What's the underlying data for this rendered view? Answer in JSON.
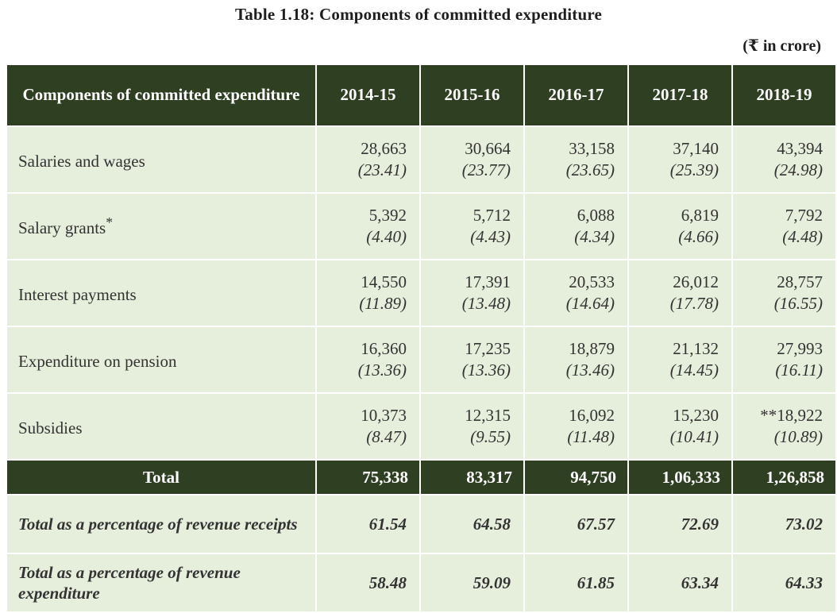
{
  "title": "Table 1.18: Components of committed expenditure",
  "unit": "(₹ in crore)",
  "columns": {
    "component": "Components of committed expenditure",
    "years": [
      "2014-15",
      "2015-16",
      "2016-17",
      "2017-18",
      "2018-19"
    ]
  },
  "rows": [
    {
      "label": "Salaries and wages",
      "sup": "",
      "values": [
        "28,663",
        "30,664",
        "33,158",
        "37,140",
        "43,394"
      ],
      "pcts": [
        "(23.41)",
        "(23.77)",
        "(23.65)",
        "(25.39)",
        "(24.98)"
      ]
    },
    {
      "label": "Salary grants",
      "sup": "*",
      "values": [
        "5,392",
        "5,712",
        "6,088",
        "6,819",
        "7,792"
      ],
      "pcts": [
        "(4.40)",
        "(4.43)",
        "(4.34)",
        "(4.66)",
        "(4.48)"
      ]
    },
    {
      "label": "Interest payments",
      "sup": "",
      "values": [
        "14,550",
        "17,391",
        "20,533",
        "26,012",
        "28,757"
      ],
      "pcts": [
        "(11.89)",
        "(13.48)",
        "(14.64)",
        "(17.78)",
        "(16.55)"
      ]
    },
    {
      "label": "Expenditure on pension",
      "sup": "",
      "values": [
        "16,360",
        "17,235",
        "18,879",
        "21,132",
        "27,993"
      ],
      "pcts": [
        "(13.36)",
        "(13.36)",
        "(13.46)",
        "(14.45)",
        "(16.11)"
      ]
    },
    {
      "label": "Subsidies",
      "sup": "",
      "values": [
        "10,373",
        "12,315",
        "16,092",
        "15,230",
        "**18,922"
      ],
      "pcts": [
        "(8.47)",
        "(9.55)",
        "(11.48)",
        "(10.41)",
        "(10.89)"
      ]
    }
  ],
  "total": {
    "label": "Total",
    "values": [
      "75,338",
      "83,317",
      "94,750",
      "1,06,333",
      "1,26,858"
    ]
  },
  "ratios": [
    {
      "label": "Total as a percentage of revenue receipts",
      "values": [
        "61.54",
        "64.58",
        "67.57",
        "72.69",
        "73.02"
      ]
    },
    {
      "label": "Total as a percentage of revenue expenditure",
      "values": [
        "58.48",
        "59.09",
        "61.85",
        "63.34",
        "64.33"
      ]
    }
  ],
  "colors": {
    "header_bg": "#2e3f22",
    "row_bg": "#e6eedc"
  }
}
